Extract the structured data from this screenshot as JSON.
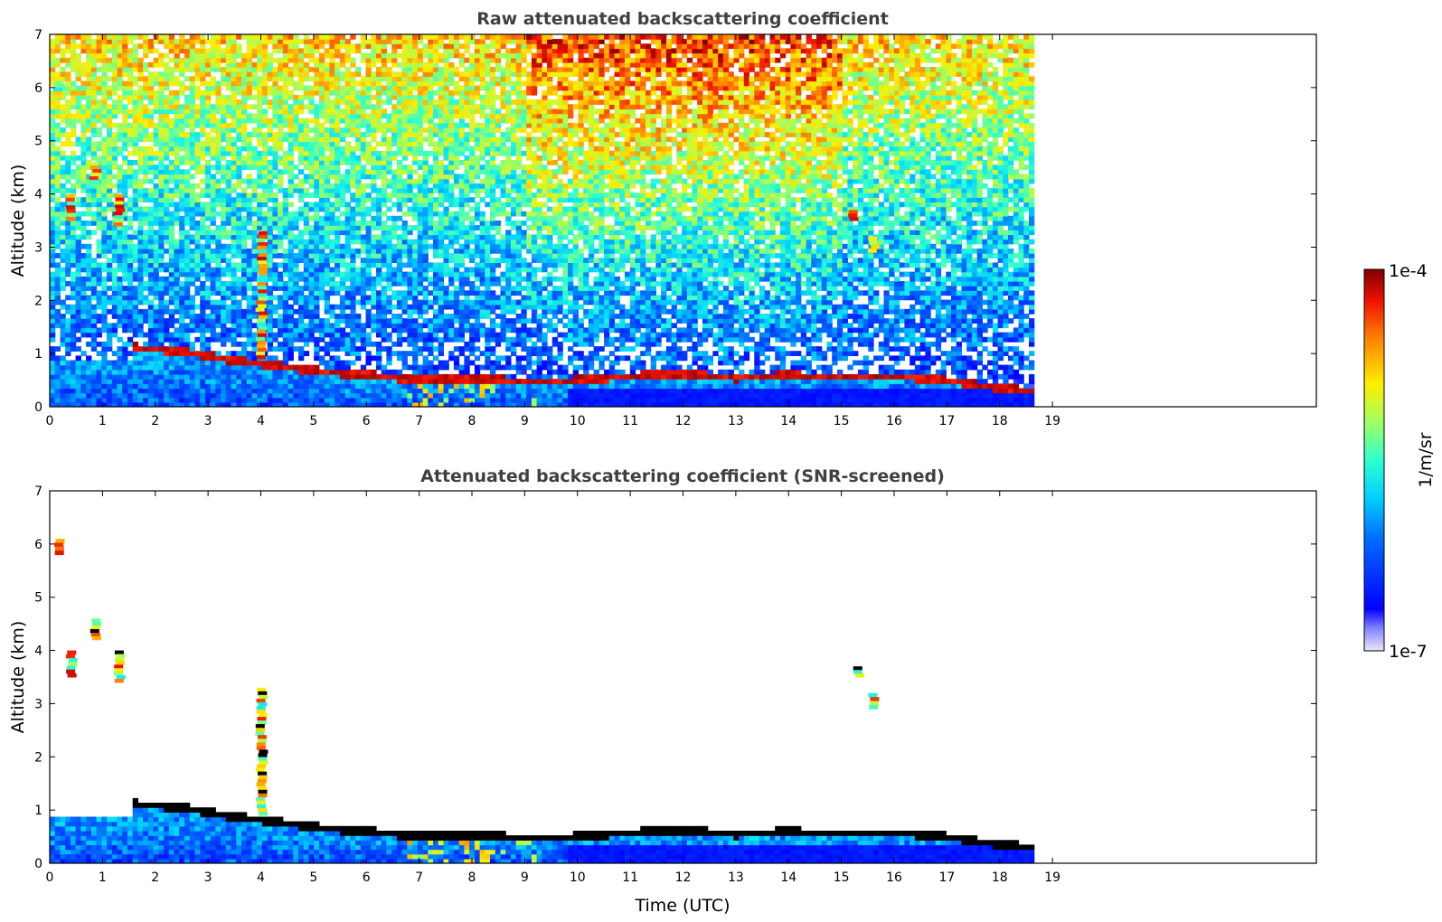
{
  "chart_data": [
    {
      "type": "heatmap",
      "title": "Raw attenuated backscattering coefficient",
      "xlabel": "",
      "ylabel": "Altitude (km)",
      "xlim": [
        0,
        24
      ],
      "ylim": [
        0,
        7
      ],
      "xticks": [
        "0",
        "1",
        "2",
        "3",
        "4",
        "5",
        "6",
        "7",
        "8",
        "9",
        "10",
        "11",
        "12",
        "13",
        "14",
        "15",
        "16",
        "17",
        "18",
        "19"
      ],
      "yticks": [
        "0",
        "1",
        "2",
        "3",
        "4",
        "5",
        "6",
        "7"
      ],
      "data_end_time": 18.65,
      "screening": "raw",
      "cloud_base_km": {
        "x": [
          1.6,
          2.5,
          3.0,
          3.5,
          4.0,
          5.0,
          6.0,
          7.0,
          8.0,
          9.0,
          10.0,
          11.0,
          12.0,
          13.0,
          14.0,
          15.0,
          16.0,
          17.0,
          18.0,
          18.65
        ],
        "y": [
          1.12,
          1.05,
          0.97,
          0.88,
          0.82,
          0.68,
          0.6,
          0.52,
          0.55,
          0.47,
          0.5,
          0.58,
          0.62,
          0.55,
          0.6,
          0.55,
          0.58,
          0.5,
          0.35,
          0.3
        ]
      },
      "features": [
        {
          "label": "cloud",
          "t": 0.15,
          "alt": [
            5.8,
            6.2
          ]
        },
        {
          "label": "cloud",
          "t": 0.85,
          "alt": [
            4.2,
            4.6
          ]
        },
        {
          "label": "cloud",
          "t": 0.4,
          "alt": [
            3.5,
            4.0
          ]
        },
        {
          "label": "cloud",
          "t": 1.3,
          "alt": [
            3.4,
            4.0
          ]
        },
        {
          "label": "cloud",
          "t": 4.0,
          "alt": [
            0.9,
            3.3
          ]
        },
        {
          "label": "cloud",
          "t": 15.2,
          "alt": [
            3.5,
            3.7
          ]
        },
        {
          "label": "cloud",
          "t": 15.6,
          "alt": [
            2.9,
            3.2
          ]
        }
      ]
    },
    {
      "type": "heatmap",
      "title": "Attenuated backscattering coefficient (SNR-screened)",
      "xlabel": "Time (UTC)",
      "ylabel": "Altitude (km)",
      "xlim": [
        0,
        24
      ],
      "ylim": [
        0,
        7
      ],
      "xticks": [
        "0",
        "1",
        "2",
        "3",
        "4",
        "5",
        "6",
        "7",
        "8",
        "9",
        "10",
        "11",
        "12",
        "13",
        "14",
        "15",
        "16",
        "17",
        "18",
        "19"
      ],
      "yticks": [
        "0",
        "1",
        "2",
        "3",
        "4",
        "5",
        "6",
        "7"
      ],
      "data_end_time": 18.65,
      "screening": "snr",
      "cloud_base_km": {
        "x": [
          1.6,
          2.5,
          3.0,
          3.5,
          4.0,
          5.0,
          6.0,
          7.0,
          8.0,
          9.0,
          10.0,
          11.0,
          12.0,
          13.0,
          14.0,
          15.0,
          16.0,
          17.0,
          18.0,
          18.65
        ],
        "y": [
          1.12,
          1.05,
          0.97,
          0.88,
          0.82,
          0.68,
          0.6,
          0.52,
          0.55,
          0.47,
          0.5,
          0.58,
          0.62,
          0.55,
          0.6,
          0.55,
          0.58,
          0.5,
          0.35,
          0.3
        ]
      },
      "features": [
        {
          "label": "cloud",
          "t": 0.15,
          "alt": [
            5.8,
            6.1
          ]
        },
        {
          "label": "cloud",
          "t": 0.85,
          "alt": [
            4.2,
            4.6
          ]
        },
        {
          "label": "cloud",
          "t": 0.4,
          "alt": [
            3.5,
            4.0
          ]
        },
        {
          "label": "cloud",
          "t": 1.3,
          "alt": [
            3.4,
            4.0
          ]
        },
        {
          "label": "cloud",
          "t": 4.0,
          "alt": [
            0.9,
            3.3
          ]
        },
        {
          "label": "cloud",
          "t": 15.3,
          "alt": [
            3.5,
            3.7
          ]
        },
        {
          "label": "cloud",
          "t": 15.6,
          "alt": [
            2.9,
            3.2
          ]
        }
      ]
    }
  ],
  "colorbar": {
    "label": "1/m/sr",
    "max_label": "1e-4",
    "min_label": "1e-7",
    "scale": "log",
    "colormap": "jet",
    "range": [
      1e-07,
      0.0001
    ]
  }
}
